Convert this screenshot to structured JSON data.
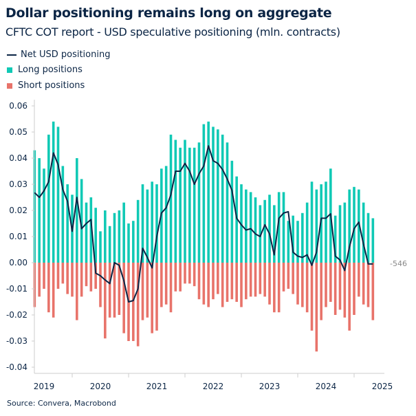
{
  "title": "Dollar positioning remains long on aggregate",
  "subtitle": "CFTC COT report - USD speculative positioning (mln. contracts)",
  "source": "Source: Convera, Macrobond",
  "colors": {
    "net": "#0b2545",
    "long": "#10c9b5",
    "short": "#e8736a"
  },
  "legend": [
    {
      "label": "Net USD positioning",
      "type": "line"
    },
    {
      "label": "Long positions",
      "type": "bar"
    },
    {
      "label": "Short positions",
      "type": "bar"
    }
  ],
  "chart_data": {
    "type": "bar",
    "title": "Dollar positioning remains long on aggregate",
    "subtitle": "CFTC COT report - USD speculative positioning (mln. contracts)",
    "ylim": [
      -0.04,
      0.06
    ],
    "yticks": [
      "0.06",
      "0.05",
      "0.04",
      "0.03",
      "0.02",
      "0.01",
      "0.00",
      "-0.01",
      "-0.02",
      "-0.03",
      "-0.04"
    ],
    "ytick_values": [
      0.06,
      0.05,
      0.04,
      0.03,
      0.02,
      0.01,
      0,
      -0.01,
      -0.02,
      -0.03,
      -0.04
    ],
    "xticks": [
      "2019",
      "2020",
      "2021",
      "2022",
      "2023",
      "2024",
      "2025"
    ],
    "x_start": "2019-05",
    "x_frequency": "monthly",
    "grid": false,
    "legend_position": "top-left",
    "last_value_label": "-546",
    "series": [
      {
        "name": "Long positions",
        "type": "bar",
        "values": [
          0.043,
          0.04,
          0.036,
          0.049,
          0.054,
          0.052,
          0.037,
          0.03,
          0.026,
          0.04,
          0.032,
          0.023,
          0.025,
          0.021,
          0.012,
          0.02,
          0.014,
          0.019,
          0.02,
          0.023,
          0.015,
          0.016,
          0.024,
          0.03,
          0.028,
          0.031,
          0.03,
          0.036,
          0.037,
          0.049,
          0.047,
          0.044,
          0.047,
          0.044,
          0.044,
          0.046,
          0.053,
          0.054,
          0.052,
          0.051,
          0.049,
          0.046,
          0.039,
          0.033,
          0.03,
          0.028,
          0.027,
          0.025,
          0.022,
          0.024,
          0.026,
          0.022,
          0.027,
          0.027,
          0.016,
          0.018,
          0.016,
          0.019,
          0.023,
          0.031,
          0.028,
          0.03,
          0.031,
          0.036,
          0.018,
          0.022,
          0.023,
          0.028,
          0.029,
          0.028,
          0.023,
          0.019,
          0.017
        ]
      },
      {
        "name": "Short positions",
        "type": "bar",
        "values": [
          -0.017,
          -0.013,
          -0.01,
          -0.019,
          -0.021,
          -0.01,
          -0.008,
          -0.012,
          -0.013,
          -0.022,
          -0.013,
          -0.009,
          -0.011,
          -0.01,
          -0.017,
          -0.029,
          -0.021,
          -0.021,
          -0.02,
          -0.027,
          -0.03,
          -0.03,
          -0.032,
          -0.022,
          -0.021,
          -0.027,
          -0.026,
          -0.017,
          -0.016,
          -0.019,
          -0.011,
          -0.011,
          -0.008,
          -0.008,
          -0.009,
          -0.014,
          -0.016,
          -0.017,
          -0.014,
          -0.012,
          -0.017,
          -0.015,
          -0.014,
          -0.015,
          -0.017,
          -0.014,
          -0.013,
          -0.013,
          -0.012,
          -0.013,
          -0.016,
          -0.019,
          -0.019,
          -0.011,
          -0.01,
          -0.012,
          -0.016,
          -0.017,
          -0.019,
          -0.026,
          -0.034,
          -0.022,
          -0.017,
          -0.015,
          -0.02,
          -0.018,
          -0.021,
          -0.026,
          -0.02,
          -0.013,
          -0.016,
          -0.017,
          -0.022
        ]
      },
      {
        "name": "Net USD positioning",
        "type": "line",
        "values": [
          0.0268,
          0.025,
          0.0275,
          0.031,
          0.042,
          0.0375,
          0.028,
          0.0235,
          0.012,
          0.025,
          0.013,
          0.015,
          0.0165,
          -0.004,
          -0.005,
          -0.0066,
          -0.008,
          0.0,
          -0.001,
          -0.007,
          -0.015,
          -0.0145,
          -0.01,
          0.0055,
          0.002,
          -0.002,
          0.01,
          0.019,
          0.021,
          0.026,
          0.035,
          0.035,
          0.038,
          0.035,
          0.03,
          0.034,
          0.037,
          0.0447,
          0.039,
          0.038,
          0.0356,
          0.032,
          0.0277,
          0.017,
          0.0145,
          0.0125,
          0.013,
          0.011,
          0.01,
          0.0145,
          0.011,
          0.003,
          0.017,
          0.019,
          0.0195,
          0.004,
          0.0025,
          0.002,
          0.003,
          -0.001,
          0.004,
          0.017,
          0.017,
          0.0187,
          0.0025,
          0.001,
          -0.003,
          0.006,
          0.013,
          0.0155,
          0.007,
          -0.0005,
          -0.0005
        ]
      }
    ]
  }
}
